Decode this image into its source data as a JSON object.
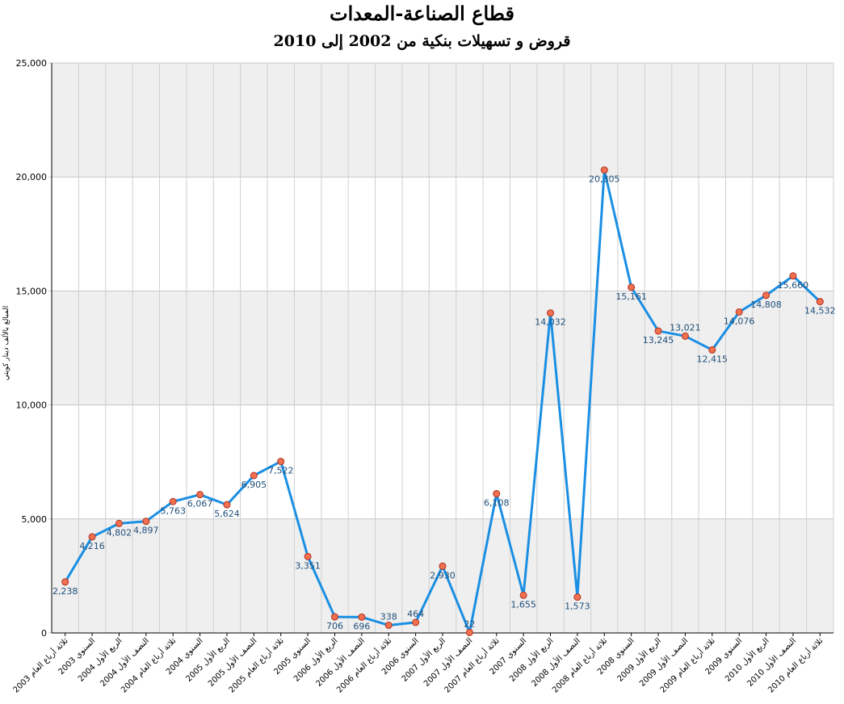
{
  "chart_data": {
    "type": "line",
    "title": "قطاع الصناعة-المعدات",
    "subtitle": "قروض و تسهيلات بنكية من 2002 إلى 2010",
    "ylabel": "المبالغ بالألف دينار كويتي",
    "xlabel": "",
    "ylim": [
      0,
      25000
    ],
    "yticks": [
      "0",
      "5,000",
      "10,000",
      "15,000",
      "20,000",
      "25,000"
    ],
    "grid": true,
    "colors": {
      "line": "#1a8fe3",
      "marker_fill": "#f07050",
      "marker_stroke": "#b03020",
      "band": "#efefef",
      "label": "#1f4e79"
    },
    "categories": [
      "ثلاثة أرباع العام 2003",
      "السنوي 2003",
      "الربع الأول 2004",
      "النصف الأول 2004",
      "ثلاثة أرباع العام 2004",
      "السنوي 2004",
      "الربع الأول 2005",
      "النصف الأول 2005",
      "ثلاثة أرباع العام 2005",
      "السنوي 2005",
      "الربع الأول 2006",
      "النصف الأول 2006",
      "ثلاثة أرباع العام 2006",
      "السنوي 2006",
      "الربع الأول 2007",
      "النصف الأول 2007",
      "ثلاثة أرباع العام 2007",
      "السنوي 2007",
      "الربع الأول 2008",
      "النصف الأول 2008",
      "ثلاثة أرباع العام 2008",
      "السنوي 2008",
      "الربع الأول 2009",
      "النصف الأول 2009",
      "ثلاثة أرباع العام 2009",
      "السنوي 2009",
      "الربع الأول 2010",
      "النصف الأول 2010",
      "ثلاثة أرباع العام 2010"
    ],
    "values": [
      2238,
      4216,
      4802,
      4897,
      5763,
      6067,
      5624,
      6905,
      7522,
      3351,
      706,
      696,
      338,
      464,
      2930,
      22,
      6108,
      1655,
      14032,
      1573,
      20305,
      15161,
      13245,
      13021,
      12415,
      14076,
      14808,
      15660,
      14532
    ],
    "value_labels": [
      "2,238",
      "4,216",
      "4,802",
      "4,897",
      "5,763",
      "6,067",
      "5,624",
      "6,905",
      "7,522",
      "3,351",
      "706",
      "696",
      "338",
      "464",
      "2,930",
      "22",
      "6,108",
      "1,655",
      "14,032",
      "1,573",
      "20,305",
      "15,161",
      "13,245",
      "13,021",
      "12,415",
      "14,076",
      "14,808",
      "15,660",
      "14,532"
    ],
    "label_above": [
      false,
      false,
      false,
      false,
      false,
      false,
      false,
      false,
      false,
      false,
      false,
      false,
      true,
      true,
      false,
      true,
      false,
      false,
      false,
      false,
      false,
      false,
      false,
      true,
      false,
      false,
      false,
      false,
      false
    ]
  }
}
